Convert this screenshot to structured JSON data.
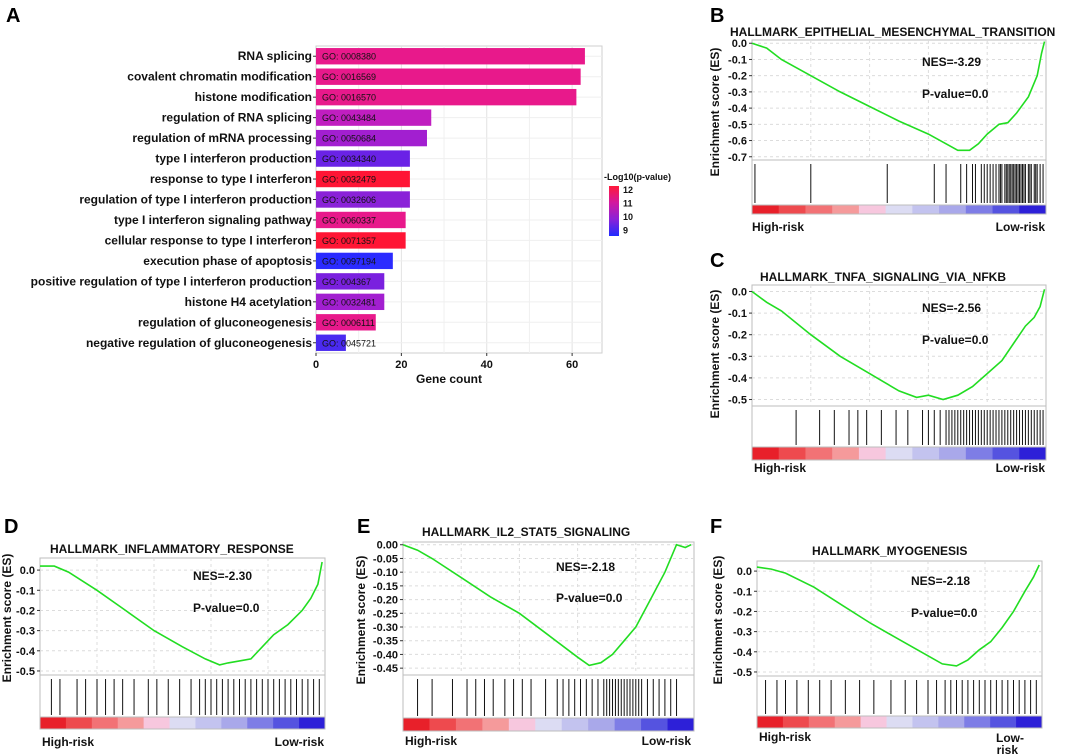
{
  "chart_data": [
    {
      "panel": "A",
      "type": "bar",
      "orientation": "horizontal",
      "xlabel": "Gene count",
      "xlim": [
        0,
        67
      ],
      "xticks": [
        0,
        20,
        40,
        60
      ],
      "legend": {
        "title": "-Log10(p-value)",
        "ticks": [
          12,
          11,
          10,
          9
        ],
        "range": [
          8.6,
          12.3
        ],
        "colors": [
          "#1f2bff",
          "#8a22d8",
          "#d2189f",
          "#ff1a3a"
        ],
        "placement": "right"
      },
      "categories": [
        "RNA splicing",
        "covalent chromatin modification",
        "histone modification",
        "regulation of RNA splicing",
        "regulation of mRNA processing",
        "type I interferon production",
        "response to type I interferon",
        "regulation of type I interferon production",
        "type I interferon signaling pathway",
        "cellular response to type I interferon",
        "execution phase of apoptosis",
        "positive regulation of type I interferon production",
        "histone H4 acetylation",
        "regulation of gluconeogenesis",
        "negative regulation of gluconeogenesis"
      ],
      "go_ids": [
        "GO: 0008380",
        "GO: 0016569",
        "GO: 0016570",
        "GO: 0043484",
        "GO: 0050684",
        "GO: 0034340",
        "GO: 0032479",
        "GO: 0032606",
        "GO: 0060337",
        "GO: 0071357",
        "GO: 0097194",
        "GO: 004367",
        "GO: 0032481",
        "GO: 0006111",
        "GO: 0045721"
      ],
      "values": [
        63,
        62,
        61,
        27,
        26,
        22,
        22,
        22,
        21,
        21,
        18,
        16,
        16,
        14,
        7
      ],
      "colors": [
        "#e8198b",
        "#e8198b",
        "#e8198b",
        "#c01ec0",
        "#a21fd0",
        "#6a22e6",
        "#ff1535",
        "#8a22d8",
        "#e8198b",
        "#ff1535",
        "#2b2bff",
        "#7a20df",
        "#a21fd0",
        "#e8198b",
        "#4a2af0"
      ]
    },
    {
      "panel": "B",
      "type": "line",
      "title": "HALLMARK_EPITHELIAL_MESENCHYMAL_TRANSITION",
      "ylabel": "Enrichment score (ES)",
      "ylim": [
        -0.72,
        0.02
      ],
      "yticks": [
        0.0,
        -0.1,
        -0.2,
        -0.3,
        -0.4,
        -0.5,
        -0.6,
        -0.7
      ],
      "nes": "NES=-3.29",
      "pvalue": "P-value=0.0",
      "left_label": "High-risk",
      "right_label": "Low-risk",
      "curve": [
        [
          0,
          0.0
        ],
        [
          0.05,
          -0.03
        ],
        [
          0.1,
          -0.1
        ],
        [
          0.2,
          -0.2
        ],
        [
          0.3,
          -0.3
        ],
        [
          0.4,
          -0.39
        ],
        [
          0.5,
          -0.48
        ],
        [
          0.6,
          -0.56
        ],
        [
          0.67,
          -0.63
        ],
        [
          0.7,
          -0.66
        ],
        [
          0.74,
          -0.66
        ],
        [
          0.77,
          -0.62
        ],
        [
          0.8,
          -0.56
        ],
        [
          0.84,
          -0.5
        ],
        [
          0.87,
          -0.49
        ],
        [
          0.9,
          -0.43
        ],
        [
          0.94,
          -0.33
        ],
        [
          0.97,
          -0.2
        ],
        [
          0.985,
          -0.06
        ],
        [
          0.995,
          0.01
        ]
      ],
      "hits": [
        0.01,
        0.2,
        0.46,
        0.62,
        0.66,
        0.71,
        0.73,
        0.75,
        0.76,
        0.78,
        0.79,
        0.8,
        0.81,
        0.82,
        0.83,
        0.84,
        0.845,
        0.85,
        0.86,
        0.865,
        0.87,
        0.875,
        0.88,
        0.885,
        0.89,
        0.895,
        0.9,
        0.905,
        0.91,
        0.915,
        0.92,
        0.925,
        0.93,
        0.94,
        0.945,
        0.95,
        0.96,
        0.965,
        0.97,
        0.98,
        0.99
      ]
    },
    {
      "panel": "C",
      "type": "line",
      "title": "HALLMARK_TNFA_SIGNALING_VIA_NFKB",
      "ylabel": "Enrichment score (ES)",
      "ylim": [
        -0.53,
        0.03
      ],
      "yticks": [
        0.0,
        -0.1,
        -0.2,
        -0.3,
        -0.4,
        -0.5
      ],
      "nes": "NES=-2.56",
      "pvalue": "P-value=0.0",
      "left_label": "High-risk",
      "right_label": "Low-risk",
      "curve": [
        [
          0,
          0.0
        ],
        [
          0.05,
          -0.05
        ],
        [
          0.1,
          -0.09
        ],
        [
          0.2,
          -0.2
        ],
        [
          0.3,
          -0.3
        ],
        [
          0.4,
          -0.38
        ],
        [
          0.5,
          -0.46
        ],
        [
          0.56,
          -0.49
        ],
        [
          0.6,
          -0.48
        ],
        [
          0.65,
          -0.5
        ],
        [
          0.7,
          -0.48
        ],
        [
          0.75,
          -0.44
        ],
        [
          0.8,
          -0.38
        ],
        [
          0.85,
          -0.32
        ],
        [
          0.9,
          -0.22
        ],
        [
          0.93,
          -0.16
        ],
        [
          0.96,
          -0.12
        ],
        [
          0.98,
          -0.07
        ],
        [
          0.995,
          0.01
        ]
      ],
      "hits": [
        0.15,
        0.23,
        0.28,
        0.33,
        0.36,
        0.39,
        0.44,
        0.49,
        0.53,
        0.58,
        0.6,
        0.62,
        0.64,
        0.66,
        0.67,
        0.68,
        0.69,
        0.7,
        0.71,
        0.72,
        0.73,
        0.74,
        0.75,
        0.76,
        0.77,
        0.78,
        0.79,
        0.8,
        0.81,
        0.82,
        0.83,
        0.84,
        0.85,
        0.86,
        0.87,
        0.88,
        0.89,
        0.9,
        0.91,
        0.92,
        0.93,
        0.94,
        0.95,
        0.96,
        0.97,
        0.98,
        0.99
      ]
    },
    {
      "panel": "D",
      "type": "line",
      "title": "HALLMARK_INFLAMMATORY_RESPONSE",
      "ylabel": "Enrichment score (ES)",
      "ylim": [
        -0.52,
        0.06
      ],
      "yticks": [
        0.0,
        -0.1,
        -0.2,
        -0.3,
        -0.4,
        -0.5
      ],
      "nes": "NES=-2.30",
      "pvalue": "P-value=0.0",
      "left_label": "High-risk",
      "right_label": "Low-risk",
      "curve": [
        [
          0,
          0.02
        ],
        [
          0.05,
          0.02
        ],
        [
          0.1,
          -0.01
        ],
        [
          0.2,
          -0.1
        ],
        [
          0.3,
          -0.2
        ],
        [
          0.4,
          -0.3
        ],
        [
          0.5,
          -0.38
        ],
        [
          0.58,
          -0.44
        ],
        [
          0.63,
          -0.47
        ],
        [
          0.66,
          -0.46
        ],
        [
          0.7,
          -0.45
        ],
        [
          0.74,
          -0.44
        ],
        [
          0.78,
          -0.38
        ],
        [
          0.82,
          -0.32
        ],
        [
          0.87,
          -0.27
        ],
        [
          0.92,
          -0.2
        ],
        [
          0.95,
          -0.14
        ],
        [
          0.975,
          -0.07
        ],
        [
          0.99,
          0.04
        ]
      ],
      "hits": [
        0.04,
        0.07,
        0.13,
        0.16,
        0.2,
        0.23,
        0.26,
        0.29,
        0.33,
        0.38,
        0.41,
        0.45,
        0.49,
        0.53,
        0.56,
        0.58,
        0.6,
        0.62,
        0.64,
        0.66,
        0.68,
        0.7,
        0.72,
        0.74,
        0.76,
        0.78,
        0.8,
        0.82,
        0.84,
        0.86,
        0.88,
        0.9,
        0.92,
        0.94,
        0.96,
        0.98
      ]
    },
    {
      "panel": "E",
      "type": "line",
      "title": "HALLMARK_IL2_STAT5_SIGNALING",
      "ylabel": "Enrichment score (ES)",
      "ylim": [
        -0.475,
        0.01
      ],
      "yticks": [
        0.0,
        -0.05,
        -0.1,
        -0.15,
        -0.2,
        -0.25,
        -0.3,
        -0.35,
        -0.4,
        -0.45
      ],
      "nes": "NES=-2.18",
      "pvalue": "P-value=0.0",
      "left_label": "High-risk",
      "right_label": "Low-risk",
      "curve": [
        [
          0,
          0.0
        ],
        [
          0.05,
          -0.02
        ],
        [
          0.1,
          -0.05
        ],
        [
          0.2,
          -0.12
        ],
        [
          0.3,
          -0.19
        ],
        [
          0.4,
          -0.25
        ],
        [
          0.5,
          -0.33
        ],
        [
          0.6,
          -0.41
        ],
        [
          0.64,
          -0.44
        ],
        [
          0.68,
          -0.43
        ],
        [
          0.72,
          -0.4
        ],
        [
          0.76,
          -0.35
        ],
        [
          0.8,
          -0.3
        ],
        [
          0.85,
          -0.2
        ],
        [
          0.9,
          -0.1
        ],
        [
          0.94,
          0.0
        ],
        [
          0.97,
          -0.01
        ],
        [
          0.99,
          0.0
        ]
      ],
      "hits": [
        0.05,
        0.1,
        0.17,
        0.22,
        0.25,
        0.28,
        0.31,
        0.35,
        0.38,
        0.41,
        0.44,
        0.49,
        0.53,
        0.55,
        0.57,
        0.59,
        0.61,
        0.63,
        0.65,
        0.67,
        0.69,
        0.7,
        0.71,
        0.72,
        0.73,
        0.74,
        0.75,
        0.76,
        0.77,
        0.78,
        0.79,
        0.8,
        0.81,
        0.82,
        0.84,
        0.86,
        0.88,
        0.9,
        0.92,
        0.94
      ]
    },
    {
      "panel": "F",
      "type": "line",
      "title": "HALLMARK_MYOGENESIS",
      "ylabel": "Enrichment score (ES)",
      "ylim": [
        -0.52,
        0.05
      ],
      "yticks": [
        0.0,
        -0.1,
        -0.2,
        -0.3,
        -0.4,
        -0.5
      ],
      "nes": "NES=-2.18",
      "pvalue": "P-value=0.0",
      "left_label": "High-risk",
      "right_label": "Low-\nrisk",
      "curve": [
        [
          0,
          0.02
        ],
        [
          0.05,
          0.01
        ],
        [
          0.1,
          -0.01
        ],
        [
          0.2,
          -0.08
        ],
        [
          0.3,
          -0.17
        ],
        [
          0.4,
          -0.26
        ],
        [
          0.5,
          -0.34
        ],
        [
          0.6,
          -0.42
        ],
        [
          0.65,
          -0.46
        ],
        [
          0.7,
          -0.47
        ],
        [
          0.74,
          -0.44
        ],
        [
          0.78,
          -0.39
        ],
        [
          0.82,
          -0.35
        ],
        [
          0.86,
          -0.28
        ],
        [
          0.9,
          -0.2
        ],
        [
          0.94,
          -0.1
        ],
        [
          0.97,
          -0.03
        ],
        [
          0.99,
          0.03
        ]
      ],
      "hits": [
        0.03,
        0.07,
        0.1,
        0.14,
        0.18,
        0.22,
        0.26,
        0.31,
        0.36,
        0.41,
        0.47,
        0.52,
        0.56,
        0.6,
        0.63,
        0.66,
        0.68,
        0.7,
        0.72,
        0.74,
        0.76,
        0.78,
        0.8,
        0.82,
        0.84,
        0.86,
        0.88,
        0.9,
        0.92,
        0.94,
        0.96,
        0.98
      ]
    }
  ],
  "panel_labels": [
    "A",
    "B",
    "C",
    "D",
    "E",
    "F"
  ],
  "colors": {
    "curve": "#22dd22",
    "hit": "#111111"
  },
  "risk_gradient": [
    "#e8202a",
    "#ee4a4e",
    "#f27275",
    "#f59a9b",
    "#f7c7de",
    "#dcdcf3",
    "#c3c3ef",
    "#a9a8ea",
    "#7e7de6",
    "#5553e0",
    "#2d20d8"
  ]
}
